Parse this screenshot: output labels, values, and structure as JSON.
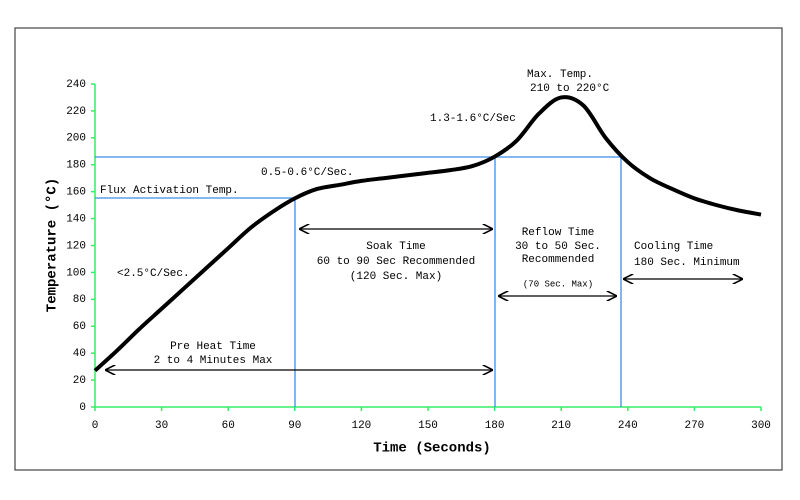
{
  "chart_data": {
    "type": "line",
    "xlabel": "Time (Seconds)",
    "ylabel": "Temperature (°C)",
    "x": [
      0,
      10,
      20,
      30,
      40,
      50,
      60,
      70,
      80,
      90,
      100,
      110,
      120,
      130,
      140,
      150,
      160,
      170,
      180,
      190,
      200,
      210,
      220,
      230,
      240,
      250,
      260,
      270,
      280,
      290,
      300
    ],
    "series": [
      {
        "color": "#000000",
        "values": [
          27,
          42,
          58,
          73,
          88,
          103,
          118,
          133,
          145,
          155,
          162,
          165,
          168,
          170,
          172,
          174,
          176,
          179,
          186,
          198,
          218,
          230,
          224,
          200,
          182,
          170,
          162,
          155,
          150,
          146,
          143
        ]
      }
    ],
    "xlim": [
      0,
      300
    ],
    "xticks": [
      0,
      30,
      60,
      90,
      120,
      150,
      180,
      210,
      240,
      270,
      300
    ],
    "ylim": [
      0,
      240
    ],
    "yticks": [
      0,
      20,
      40,
      60,
      80,
      100,
      120,
      140,
      160,
      180,
      200,
      220,
      240
    ],
    "axis_color": "#33ee66",
    "annotations": [
      "Max. Temp.",
      "210 to 220°C",
      "1.3-1.6°C/Sec",
      "0.5-0.6°C/Sec.",
      "Flux Activation Temp.",
      "<2.5°C/Sec.",
      "Soak Time",
      "60 to 90 Sec Recommended",
      "(120 Sec. Max)",
      "Reflow Time",
      "30 to 50 Sec.",
      "Recommended",
      "(70 Sec. Max)",
      "Cooling Time",
      "180 Sec. Minimum",
      "Pre Heat Time",
      "2 to 4 Minutes Max"
    ]
  }
}
